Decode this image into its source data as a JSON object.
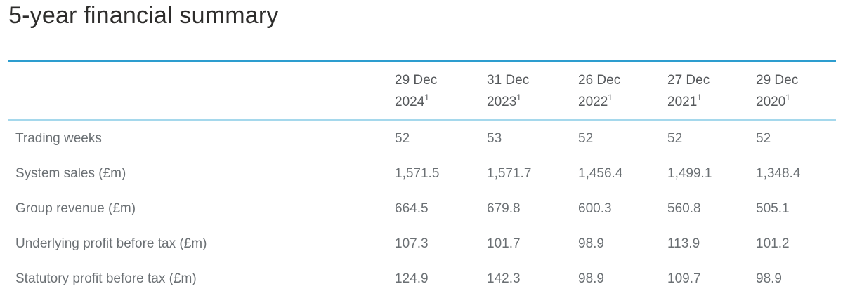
{
  "page": {
    "title": "5-year financial summary"
  },
  "colors": {
    "accent_rule": "#2d9dcf",
    "light_rule": "#a5d8ec",
    "title_text": "#2d2c2b",
    "header_text": "#55585b",
    "body_text": "#6b7074"
  },
  "table": {
    "header": {
      "columns": [
        {
          "date": "29 Dec",
          "year": "2024",
          "footnote": "1"
        },
        {
          "date": "31 Dec",
          "year": "2023",
          "footnote": "1"
        },
        {
          "date": "26 Dec",
          "year": "2022",
          "footnote": "1"
        },
        {
          "date": "27 Dec",
          "year": "2021",
          "footnote": "1"
        },
        {
          "date": "29 Dec",
          "year": "2020",
          "footnote": "1"
        }
      ]
    },
    "rows": [
      {
        "label": "Trading weeks",
        "values": [
          "52",
          "53",
          "52",
          "52",
          "52"
        ]
      },
      {
        "label": "System sales (£m)",
        "values": [
          "1,571.5",
          "1,571.7",
          "1,456.4",
          "1,499.1",
          "1,348.4"
        ]
      },
      {
        "label": "Group revenue (£m)",
        "values": [
          "664.5",
          "679.8",
          "600.3",
          "560.8",
          "505.1"
        ]
      },
      {
        "label": "Underlying profit before tax (£m)",
        "values": [
          "107.3",
          "101.7",
          "98.9",
          "113.9",
          "101.2"
        ]
      },
      {
        "label": "Statutory profit before tax (£m)",
        "values": [
          "124.9",
          "142.3",
          "98.9",
          "109.7",
          "98.9"
        ]
      }
    ]
  }
}
